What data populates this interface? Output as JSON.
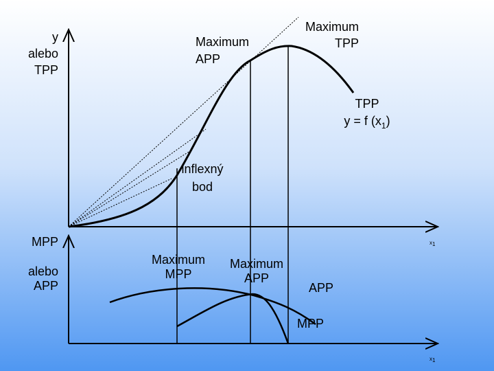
{
  "top_axis_label": [
    "y",
    "alebo",
    "TPP"
  ],
  "max_app_top": [
    "Maximum",
    "APP"
  ],
  "max_tpp": [
    "Maximum",
    "TPP"
  ],
  "tpp_label": {
    "line1": "TPP",
    "formula": "y = f (x",
    "subscript": "1",
    "close": ")"
  },
  "inflection": [
    "inflexný",
    "bod"
  ],
  "x_axis_top": {
    "text": "x",
    "subscript": "1"
  },
  "bottom_axis_label": [
    "MPP",
    "alebo",
    "APP"
  ],
  "max_mpp": [
    "Maximum",
    "MPP"
  ],
  "max_app_bottom": [
    "Maximum",
    "APP"
  ],
  "app_label": "APP",
  "mpp_label": "MPP",
  "x_axis_bottom": {
    "text": "x",
    "subscript": "1"
  }
}
